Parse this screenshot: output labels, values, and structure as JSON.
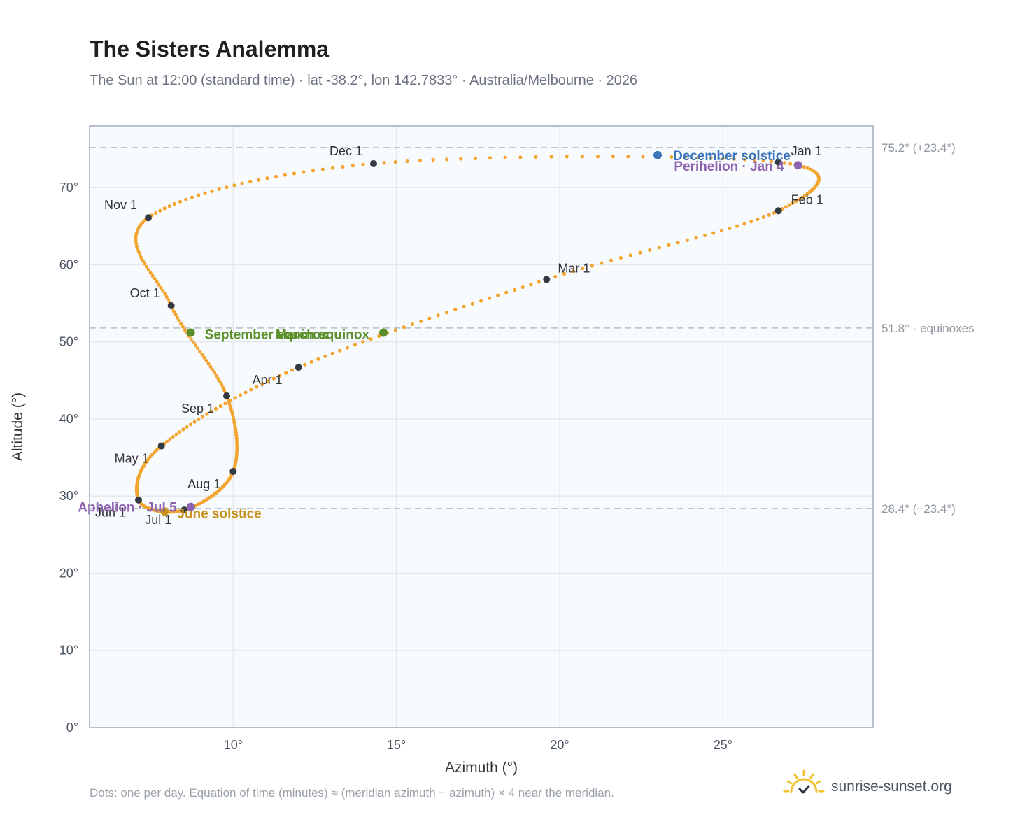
{
  "header": {
    "title": "The Sisters Analemma",
    "subtitle": "The Sun at 12:00 (standard time) · lat -38.2°, lon 142.7833° · Australia/Melbourne · 2026"
  },
  "footer": {
    "note": "Dots: one per day. Equation of time (minutes) ≈ (meridian azimuth − azimuth) × 4 near the meridian.",
    "brand": "sunrise-sunset.org",
    "brand_icon": "sun-logo-icon"
  },
  "colors": {
    "curve": "#f2a530",
    "month_marker": "#333a44",
    "equinox": "#5a8f2a",
    "december_solstice": "#3b74b9",
    "june_solstice": "#c8921c",
    "perihelion_aphelion": "#8d62b0",
    "plot_background": "#f8fbfe",
    "grid": "#e5e9ee",
    "reference_line": "#b8c0c8"
  },
  "chart_data": {
    "type": "scatter",
    "xlabel": "Azimuth (°)",
    "ylabel": "Altitude (°)",
    "xlim": [
      5.6,
      29.6
    ],
    "ylim": [
      0,
      78
    ],
    "x_ticks": [
      10,
      15,
      20,
      25
    ],
    "x_tick_labels": [
      "10°",
      "15°",
      "20°",
      "25°"
    ],
    "y_ticks": [
      0,
      10,
      20,
      30,
      40,
      50,
      60,
      70
    ],
    "y_tick_labels": [
      "0°",
      "10°",
      "20°",
      "30°",
      "40°",
      "50°",
      "60°",
      "70°"
    ],
    "grid": true,
    "reference_lines": [
      {
        "y": 75.2,
        "label": "75.2° (+23.4°)"
      },
      {
        "y": 51.8,
        "label": "51.8° · equinoxes"
      },
      {
        "y": 28.4,
        "label": "28.4° (−23.4°)"
      }
    ],
    "month_markers": [
      {
        "label": "Jan 1",
        "x": 26.7,
        "y": 73.3
      },
      {
        "label": "Feb 1",
        "x": 26.7,
        "y": 67.0
      },
      {
        "label": "Mar 1",
        "x": 19.6,
        "y": 58.1
      },
      {
        "label": "Apr 1",
        "x": 12.0,
        "y": 46.7
      },
      {
        "label": "May 1",
        "x": 7.8,
        "y": 36.5
      },
      {
        "label": "Jun 1",
        "x": 7.1,
        "y": 29.5
      },
      {
        "label": "Jul 1",
        "x": 8.5,
        "y": 28.2
      },
      {
        "label": "Aug 1",
        "x": 10.0,
        "y": 33.2
      },
      {
        "label": "Sep 1",
        "x": 9.8,
        "y": 43.0
      },
      {
        "label": "Oct 1",
        "x": 8.1,
        "y": 54.7
      },
      {
        "label": "Nov 1",
        "x": 7.4,
        "y": 66.1
      },
      {
        "label": "Dec 1",
        "x": 14.3,
        "y": 73.1
      }
    ],
    "events": [
      {
        "label": "December solstice",
        "x": 23.0,
        "y": 74.2,
        "kind": "december_solstice"
      },
      {
        "label": "Perihelion · Jan 4",
        "x": 27.3,
        "y": 72.9,
        "kind": "perihelion_aphelion"
      },
      {
        "label": "March equinox",
        "x": 14.6,
        "y": 51.2,
        "kind": "equinox"
      },
      {
        "label": "September equinox",
        "x": 8.7,
        "y": 51.2,
        "kind": "equinox"
      },
      {
        "label": "June solstice",
        "x": 7.9,
        "y": 28.0,
        "kind": "june_solstice"
      },
      {
        "label": "Aphelion · Jul 5",
        "x": 8.7,
        "y": 28.6,
        "kind": "perihelion_aphelion"
      }
    ]
  }
}
